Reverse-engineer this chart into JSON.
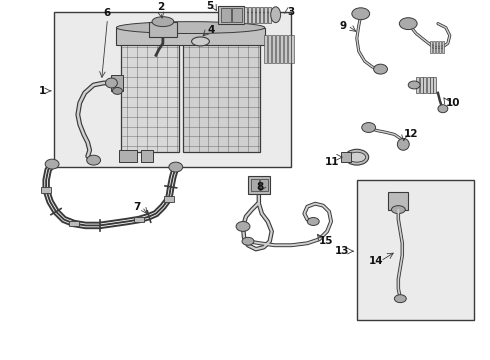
{
  "bg": "#ffffff",
  "lc": "#3a3a3a",
  "lc_light": "#888888",
  "box_fill": "#ebebeb",
  "part_fill": "#cccccc",
  "part_fill2": "#aaaaaa",
  "hatch_fill": "#d5d5d5",
  "label_fs": 7.5,
  "leader_lw": 0.6,
  "hose_lw_outer": 3.2,
  "hose_lw_inner": 1.8
}
